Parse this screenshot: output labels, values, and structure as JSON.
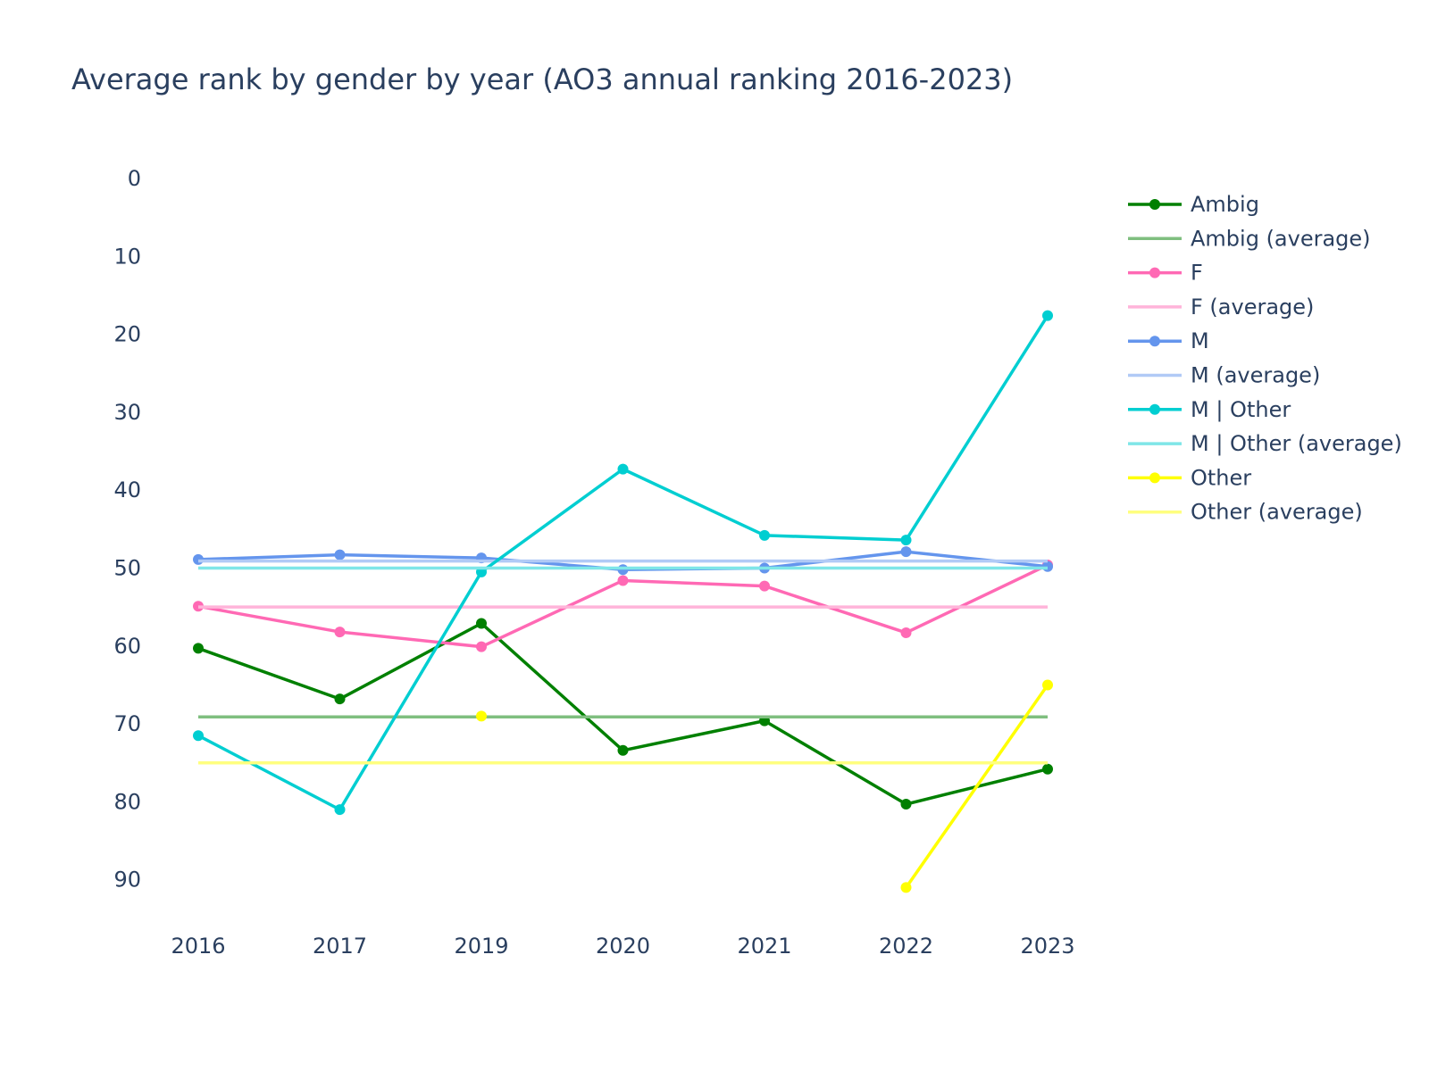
{
  "chart_data": {
    "type": "line",
    "title": "Average rank by gender by year (AO3 annual ranking 2016-2023)",
    "xlabel": "",
    "ylabel": "",
    "categories": [
      "2016",
      "2017",
      "2019",
      "2020",
      "2021",
      "2022",
      "2023"
    ],
    "y_ticks": [
      0,
      10,
      20,
      30,
      40,
      50,
      60,
      70,
      80,
      90
    ],
    "ylim": [
      0,
      97
    ],
    "y_reversed": true,
    "grid": false,
    "legend_position": "right",
    "series": [
      {
        "name": "Ambig",
        "color": "#008000",
        "style": "markers+lines",
        "values": [
          60.3,
          66.8,
          57.1,
          73.4,
          69.6,
          80.3,
          75.8
        ]
      },
      {
        "name": "Ambig (average)",
        "color": "#7fbf7f",
        "style": "lines",
        "values": [
          69.1,
          69.1,
          69.1,
          69.1,
          69.1,
          69.1,
          69.1
        ]
      },
      {
        "name": "F",
        "color": "#ff69b4",
        "style": "markers+lines",
        "values": [
          54.9,
          58.2,
          60.1,
          51.6,
          52.3,
          58.3,
          49.6
        ]
      },
      {
        "name": "F (average)",
        "color": "#ffb4d9",
        "style": "lines",
        "values": [
          55.0,
          55.0,
          55.0,
          55.0,
          55.0,
          55.0,
          55.0
        ]
      },
      {
        "name": "M",
        "color": "#6495ed",
        "style": "markers+lines",
        "values": [
          48.9,
          48.3,
          48.7,
          50.2,
          50.0,
          47.9,
          49.8
        ]
      },
      {
        "name": "M (average)",
        "color": "#b1caf6",
        "style": "lines",
        "values": [
          49.1,
          49.1,
          49.1,
          49.1,
          49.1,
          49.1,
          49.1
        ]
      },
      {
        "name": "M | Other",
        "color": "#00ced1",
        "style": "markers+lines",
        "values": [
          71.5,
          81.0,
          50.5,
          37.3,
          45.8,
          46.4,
          17.6
        ]
      },
      {
        "name": "M | Other (average)",
        "color": "#7fe6e8",
        "style": "lines",
        "values": [
          50.0,
          50.0,
          50.0,
          50.0,
          50.0,
          50.0,
          50.0
        ]
      },
      {
        "name": "Other",
        "color": "#ffff00",
        "style": "markers+lines",
        "values": [
          null,
          null,
          69.0,
          null,
          null,
          91.0,
          65.0
        ]
      },
      {
        "name": "Other (average)",
        "color": "#ffff7f",
        "style": "lines",
        "values": [
          75.0,
          75.0,
          75.0,
          75.0,
          75.0,
          75.0,
          75.0
        ]
      }
    ]
  }
}
